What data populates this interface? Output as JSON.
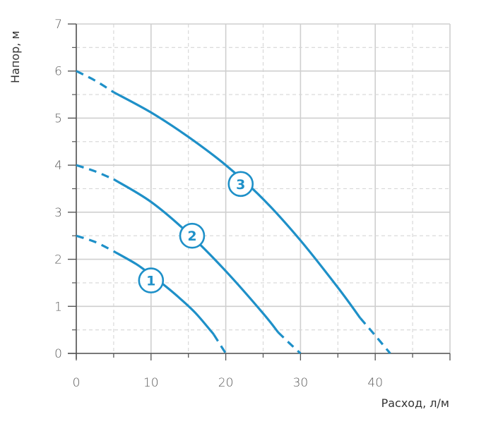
{
  "chart_data": {
    "type": "line",
    "title": "",
    "xlabel": "Расход, л/м",
    "ylabel": "Напор, м",
    "xlim": [
      0,
      50
    ],
    "ylim": [
      0,
      7
    ],
    "x_ticks": [
      "0",
      "10",
      "20",
      "30",
      "40"
    ],
    "y_ticks": [
      "0",
      "1",
      "2",
      "3",
      "4",
      "5",
      "6",
      "7"
    ],
    "grid": true,
    "line_color": "#1e90c8",
    "series": [
      {
        "name": "1",
        "solid": [
          [
            5,
            2.17
          ],
          [
            8,
            1.9
          ],
          [
            10,
            1.67
          ],
          [
            12,
            1.42
          ],
          [
            14,
            1.15
          ],
          [
            16,
            0.85
          ],
          [
            18,
            0.48
          ],
          [
            18.4,
            0.4
          ]
        ],
        "dashed_start": [
          [
            0,
            2.5
          ],
          [
            2.5,
            2.37
          ],
          [
            5,
            2.17
          ]
        ],
        "dashed_end": [
          [
            18.4,
            0.4
          ],
          [
            19.2,
            0.2
          ],
          [
            20,
            0
          ]
        ],
        "label_point": [
          10,
          1.55
        ]
      },
      {
        "name": "2",
        "solid": [
          [
            5,
            3.7
          ],
          [
            10,
            3.22
          ],
          [
            15,
            2.55
          ],
          [
            20,
            1.75
          ],
          [
            25,
            0.85
          ],
          [
            27,
            0.45
          ]
        ],
        "dashed_start": [
          [
            0,
            4.0
          ],
          [
            2.5,
            3.87
          ],
          [
            5,
            3.7
          ]
        ],
        "dashed_end": [
          [
            27,
            0.45
          ],
          [
            28.5,
            0.22
          ],
          [
            30,
            0
          ]
        ],
        "label_point": [
          15.5,
          2.5
        ]
      },
      {
        "name": "3",
        "solid": [
          [
            5,
            5.55
          ],
          [
            10,
            5.12
          ],
          [
            15,
            4.6
          ],
          [
            20,
            4.0
          ],
          [
            25,
            3.28
          ],
          [
            30,
            2.4
          ],
          [
            35,
            1.4
          ],
          [
            38,
            0.75
          ]
        ],
        "dashed_start": [
          [
            0,
            6.0
          ],
          [
            2.5,
            5.8
          ],
          [
            5,
            5.55
          ]
        ],
        "dashed_end": [
          [
            38,
            0.75
          ],
          [
            40,
            0.38
          ],
          [
            42,
            0
          ]
        ],
        "label_point": [
          22,
          3.6
        ]
      }
    ]
  }
}
